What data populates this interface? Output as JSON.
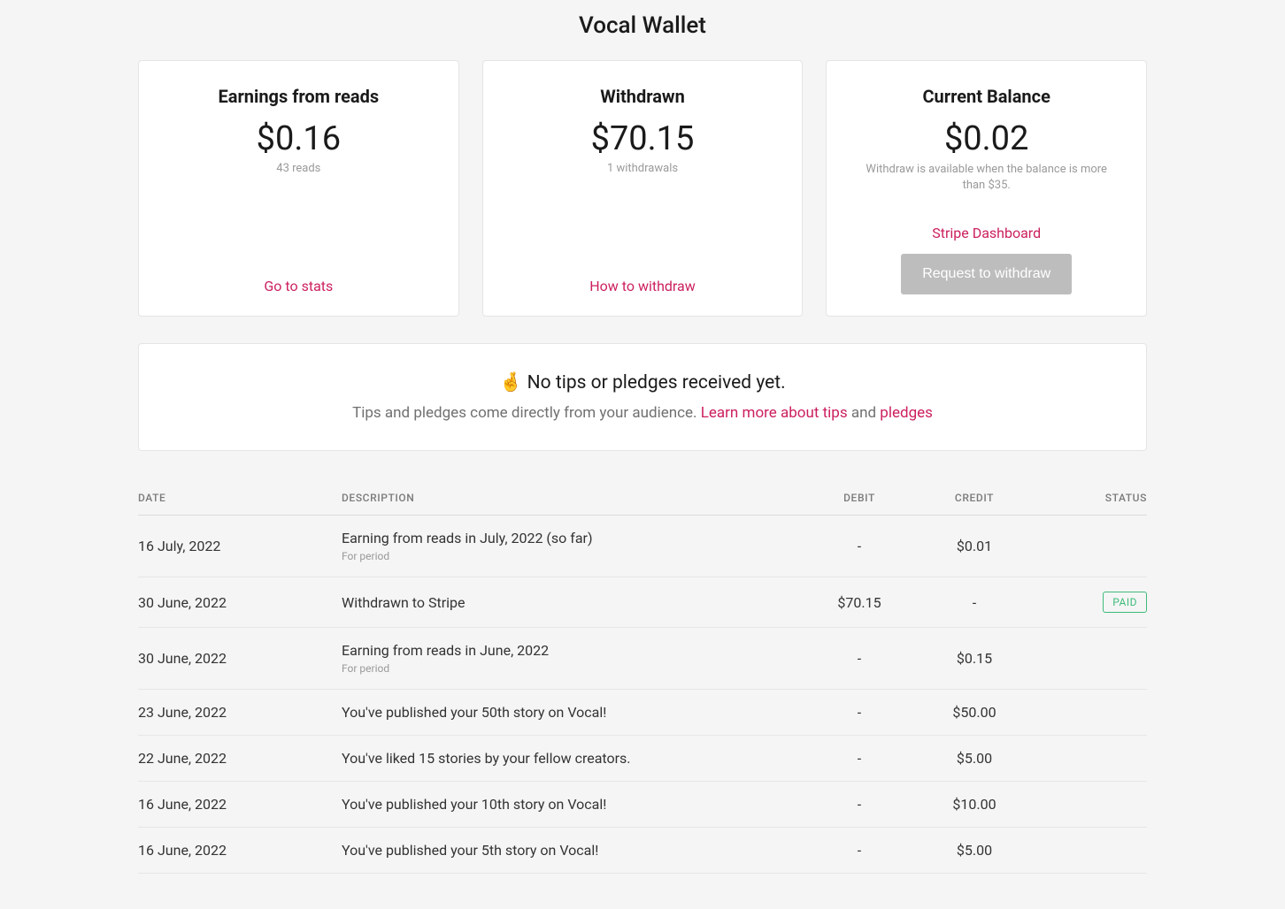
{
  "page_title": "Vocal Wallet",
  "cards": {
    "earnings": {
      "title": "Earnings from reads",
      "amount": "$0.16",
      "sub": "43 reads",
      "link": "Go to stats"
    },
    "withdrawn": {
      "title": "Withdrawn",
      "amount": "$70.15",
      "sub": "1 withdrawals",
      "link": "How to withdraw"
    },
    "balance": {
      "title": "Current Balance",
      "amount": "$0.02",
      "note": "Withdraw is available when the balance is more than $35.",
      "stripe_link": "Stripe Dashboard",
      "button": "Request to withdraw"
    }
  },
  "tips": {
    "icon": "🤞",
    "title": "No tips or pledges received yet.",
    "sub_prefix": "Tips and pledges come directly from your audience. ",
    "link_tips": "Learn more about tips",
    "and": " and ",
    "link_pledges": "pledges"
  },
  "table": {
    "headers": {
      "date": "DATE",
      "description": "DESCRIPTION",
      "debit": "DEBIT",
      "credit": "CREDIT",
      "status": "STATUS"
    },
    "rows": [
      {
        "date": "16 July, 2022",
        "desc": "Earning from reads in July, 2022 (so far)",
        "sub": "For period",
        "debit": "-",
        "credit": "$0.01",
        "status": ""
      },
      {
        "date": "30 June, 2022",
        "desc": "Withdrawn to Stripe",
        "sub": "",
        "debit": "$70.15",
        "credit": "-",
        "status": "PAID"
      },
      {
        "date": "30 June, 2022",
        "desc": "Earning from reads in June, 2022",
        "sub": "For period",
        "debit": "-",
        "credit": "$0.15",
        "status": ""
      },
      {
        "date": "23 June, 2022",
        "desc": "You've published your 50th story on Vocal!",
        "sub": "",
        "debit": "-",
        "credit": "$50.00",
        "status": ""
      },
      {
        "date": "22 June, 2022",
        "desc": "You've liked 15 stories by your fellow creators.",
        "sub": "",
        "debit": "-",
        "credit": "$5.00",
        "status": ""
      },
      {
        "date": "16 June, 2022",
        "desc": "You've published your 10th story on Vocal!",
        "sub": "",
        "debit": "-",
        "credit": "$10.00",
        "status": ""
      },
      {
        "date": "16 June, 2022",
        "desc": "You've published your 5th story on Vocal!",
        "sub": "",
        "debit": "-",
        "credit": "$5.00",
        "status": ""
      }
    ]
  }
}
